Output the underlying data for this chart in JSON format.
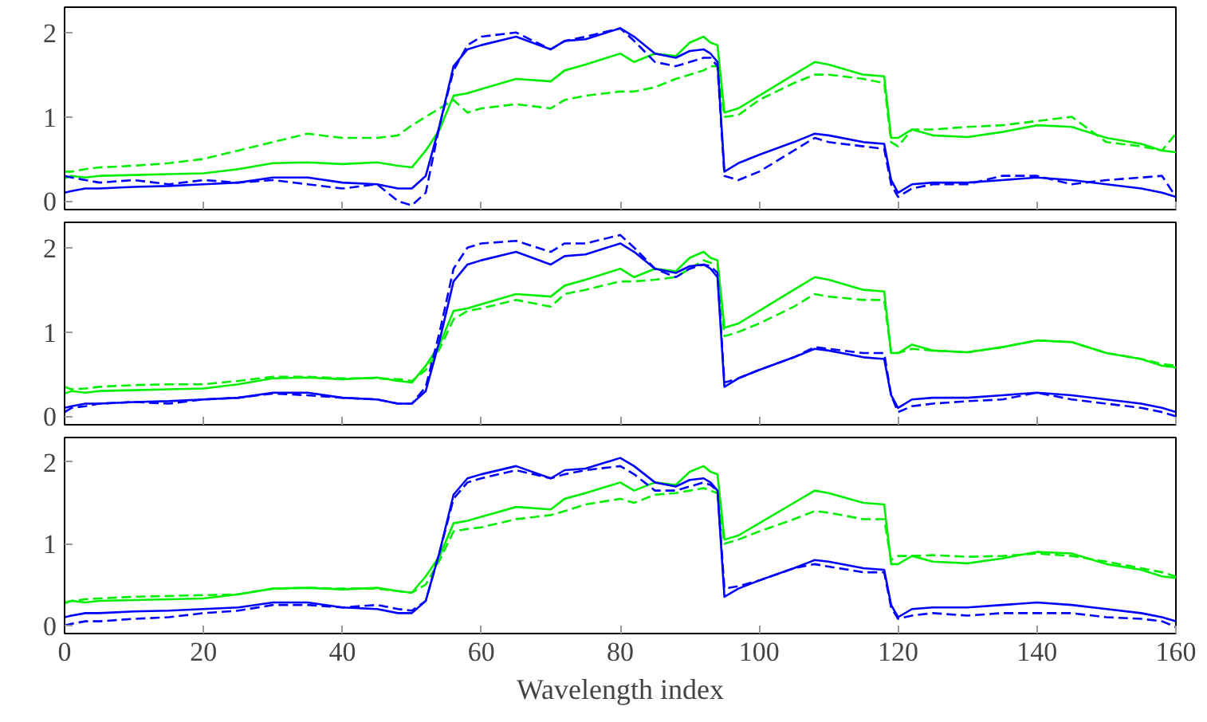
{
  "chart_data": [
    {
      "type": "line",
      "x": [
        0,
        1,
        3,
        5,
        10,
        15,
        20,
        25,
        30,
        35,
        40,
        45,
        48,
        50,
        52,
        54,
        56,
        58,
        60,
        65,
        70,
        72,
        75,
        80,
        82,
        85,
        88,
        90,
        92,
        93,
        94,
        95,
        97,
        100,
        105,
        108,
        110,
        115,
        118,
        119,
        120,
        122,
        125,
        130,
        135,
        140,
        145,
        150,
        155,
        158,
        160
      ],
      "xlim": [
        0,
        160
      ],
      "xticks": [
        0,
        20,
        40,
        60,
        80,
        100,
        120,
        140,
        160
      ],
      "ylim": [
        -0.1,
        2.3
      ],
      "yticks": [
        0,
        1,
        2
      ],
      "tick_labels": "y",
      "grid": false,
      "series": [
        {
          "color": "#00ee00",
          "line_style": "solid",
          "values": [
            0.27,
            0.3,
            0.28,
            0.3,
            0.31,
            0.32,
            0.33,
            0.38,
            0.45,
            0.46,
            0.44,
            0.46,
            0.42,
            0.4,
            0.6,
            0.85,
            1.25,
            1.28,
            1.33,
            1.45,
            1.42,
            1.55,
            1.62,
            1.75,
            1.65,
            1.75,
            1.72,
            1.88,
            1.95,
            1.88,
            1.85,
            1.05,
            1.1,
            1.25,
            1.5,
            1.65,
            1.62,
            1.5,
            1.48,
            0.75,
            0.75,
            0.85,
            0.78,
            0.76,
            0.82,
            0.9,
            0.88,
            0.75,
            0.68,
            0.6,
            0.58
          ]
        },
        {
          "color": "#00ee00",
          "line_style": "dashed",
          "values": [
            0.35,
            0.35,
            0.38,
            0.4,
            0.42,
            0.45,
            0.5,
            0.6,
            0.7,
            0.8,
            0.75,
            0.75,
            0.78,
            0.9,
            1.0,
            1.1,
            1.2,
            1.05,
            1.1,
            1.15,
            1.1,
            1.2,
            1.25,
            1.3,
            1.3,
            1.35,
            1.45,
            1.5,
            1.55,
            1.6,
            1.6,
            1.0,
            1.02,
            1.2,
            1.4,
            1.5,
            1.5,
            1.45,
            1.4,
            0.7,
            0.65,
            0.85,
            0.85,
            0.88,
            0.9,
            0.95,
            1.0,
            0.7,
            0.65,
            0.6,
            0.8
          ]
        },
        {
          "color": "#0000ff",
          "line_style": "solid",
          "values": [
            0.1,
            0.12,
            0.15,
            0.15,
            0.17,
            0.18,
            0.2,
            0.22,
            0.28,
            0.28,
            0.22,
            0.2,
            0.15,
            0.15,
            0.3,
            0.9,
            1.6,
            1.8,
            1.85,
            1.95,
            1.8,
            1.9,
            1.92,
            2.05,
            1.95,
            1.75,
            1.7,
            1.78,
            1.8,
            1.75,
            1.65,
            0.35,
            0.45,
            0.55,
            0.7,
            0.8,
            0.78,
            0.7,
            0.68,
            0.25,
            0.1,
            0.2,
            0.22,
            0.22,
            0.25,
            0.28,
            0.25,
            0.2,
            0.15,
            0.1,
            0.05
          ]
        },
        {
          "color": "#0000ff",
          "line_style": "dashed",
          "values": [
            0.3,
            0.28,
            0.25,
            0.22,
            0.25,
            0.2,
            0.25,
            0.22,
            0.25,
            0.2,
            0.15,
            0.2,
            0.0,
            -0.05,
            0.1,
            0.9,
            1.55,
            1.85,
            1.95,
            2.0,
            1.8,
            1.9,
            1.95,
            2.05,
            1.9,
            1.65,
            1.6,
            1.65,
            1.7,
            1.7,
            1.6,
            0.3,
            0.25,
            0.35,
            0.6,
            0.75,
            0.7,
            0.65,
            0.62,
            0.2,
            0.05,
            0.15,
            0.2,
            0.2,
            0.3,
            0.3,
            0.2,
            0.25,
            0.28,
            0.3,
            0.05
          ]
        }
      ]
    },
    {
      "type": "line",
      "x": [
        0,
        1,
        3,
        5,
        10,
        15,
        20,
        25,
        30,
        35,
        40,
        45,
        48,
        50,
        52,
        54,
        56,
        58,
        60,
        65,
        70,
        72,
        75,
        80,
        82,
        85,
        88,
        90,
        92,
        93,
        94,
        95,
        97,
        100,
        105,
        108,
        110,
        115,
        118,
        119,
        120,
        122,
        125,
        130,
        135,
        140,
        145,
        150,
        155,
        158,
        160
      ],
      "xlim": [
        0,
        160
      ],
      "xticks": [
        0,
        20,
        40,
        60,
        80,
        100,
        120,
        140,
        160
      ],
      "ylim": [
        -0.1,
        2.3
      ],
      "yticks": [
        0,
        1,
        2
      ],
      "tick_labels": "y",
      "grid": false,
      "series": [
        {
          "color": "#00ee00",
          "line_style": "solid",
          "values": [
            0.27,
            0.3,
            0.28,
            0.3,
            0.31,
            0.32,
            0.33,
            0.38,
            0.45,
            0.46,
            0.44,
            0.46,
            0.42,
            0.4,
            0.6,
            0.85,
            1.25,
            1.28,
            1.33,
            1.45,
            1.42,
            1.55,
            1.62,
            1.75,
            1.65,
            1.75,
            1.72,
            1.88,
            1.95,
            1.88,
            1.85,
            1.05,
            1.1,
            1.25,
            1.5,
            1.65,
            1.62,
            1.5,
            1.48,
            0.75,
            0.75,
            0.85,
            0.78,
            0.76,
            0.82,
            0.9,
            0.88,
            0.75,
            0.68,
            0.6,
            0.58
          ]
        },
        {
          "color": "#00ee00",
          "line_style": "dashed",
          "values": [
            0.35,
            0.32,
            0.33,
            0.35,
            0.37,
            0.38,
            0.38,
            0.42,
            0.47,
            0.47,
            0.45,
            0.45,
            0.44,
            0.42,
            0.55,
            0.8,
            1.15,
            1.25,
            1.28,
            1.38,
            1.3,
            1.45,
            1.5,
            1.6,
            1.6,
            1.62,
            1.65,
            1.75,
            1.85,
            1.82,
            1.8,
            0.95,
            1.0,
            1.1,
            1.3,
            1.45,
            1.42,
            1.38,
            1.38,
            0.75,
            0.75,
            0.8,
            0.78,
            0.76,
            0.82,
            0.9,
            0.88,
            0.75,
            0.68,
            0.62,
            0.6
          ]
        },
        {
          "color": "#0000ff",
          "line_style": "solid",
          "values": [
            0.1,
            0.12,
            0.15,
            0.15,
            0.17,
            0.18,
            0.2,
            0.22,
            0.28,
            0.28,
            0.22,
            0.2,
            0.15,
            0.15,
            0.3,
            0.9,
            1.6,
            1.8,
            1.85,
            1.95,
            1.8,
            1.9,
            1.92,
            2.05,
            1.95,
            1.75,
            1.7,
            1.78,
            1.8,
            1.75,
            1.65,
            0.35,
            0.45,
            0.55,
            0.7,
            0.8,
            0.78,
            0.7,
            0.68,
            0.25,
            0.1,
            0.2,
            0.22,
            0.22,
            0.25,
            0.28,
            0.25,
            0.2,
            0.15,
            0.1,
            0.05
          ]
        },
        {
          "color": "#0000ff",
          "line_style": "dashed",
          "values": [
            0.05,
            0.1,
            0.12,
            0.15,
            0.17,
            0.15,
            0.2,
            0.22,
            0.27,
            0.25,
            0.22,
            0.2,
            0.15,
            0.15,
            0.35,
            1.0,
            1.75,
            2.0,
            2.05,
            2.08,
            1.95,
            2.05,
            2.05,
            2.15,
            2.0,
            1.75,
            1.65,
            1.75,
            1.8,
            1.78,
            1.7,
            0.4,
            0.45,
            0.55,
            0.7,
            0.82,
            0.8,
            0.75,
            0.75,
            0.25,
            0.05,
            0.12,
            0.15,
            0.18,
            0.2,
            0.28,
            0.2,
            0.15,
            0.1,
            0.05,
            0.0
          ]
        }
      ]
    },
    {
      "type": "line",
      "xlabel": "Wavelength index",
      "x": [
        0,
        1,
        3,
        5,
        10,
        15,
        20,
        25,
        30,
        35,
        40,
        45,
        48,
        50,
        52,
        54,
        56,
        58,
        60,
        65,
        70,
        72,
        75,
        80,
        82,
        85,
        88,
        90,
        92,
        93,
        94,
        95,
        97,
        100,
        105,
        108,
        110,
        115,
        118,
        119,
        120,
        122,
        125,
        130,
        135,
        140,
        145,
        150,
        155,
        158,
        160
      ],
      "xlim": [
        0,
        160
      ],
      "xticks": [
        0,
        20,
        40,
        60,
        80,
        100,
        120,
        140,
        160
      ],
      "ylim": [
        -0.1,
        2.3
      ],
      "yticks": [
        0,
        1,
        2
      ],
      "grid": false,
      "series": [
        {
          "color": "#00ee00",
          "line_style": "solid",
          "values": [
            0.27,
            0.3,
            0.28,
            0.3,
            0.31,
            0.32,
            0.33,
            0.38,
            0.45,
            0.46,
            0.44,
            0.46,
            0.42,
            0.4,
            0.6,
            0.85,
            1.25,
            1.28,
            1.33,
            1.45,
            1.42,
            1.55,
            1.62,
            1.75,
            1.65,
            1.75,
            1.72,
            1.88,
            1.95,
            1.88,
            1.85,
            1.05,
            1.1,
            1.25,
            1.5,
            1.65,
            1.62,
            1.5,
            1.48,
            0.75,
            0.75,
            0.85,
            0.78,
            0.76,
            0.82,
            0.9,
            0.88,
            0.75,
            0.68,
            0.6,
            0.58
          ]
        },
        {
          "color": "#00ee00",
          "line_style": "dashed",
          "values": [
            0.28,
            0.3,
            0.32,
            0.33,
            0.35,
            0.36,
            0.37,
            0.38,
            0.45,
            0.46,
            0.45,
            0.45,
            0.42,
            0.4,
            0.5,
            0.8,
            1.15,
            1.18,
            1.2,
            1.3,
            1.35,
            1.4,
            1.48,
            1.55,
            1.5,
            1.6,
            1.62,
            1.65,
            1.68,
            1.65,
            1.62,
            1.0,
            1.05,
            1.15,
            1.3,
            1.4,
            1.38,
            1.3,
            1.3,
            0.8,
            0.85,
            0.85,
            0.86,
            0.84,
            0.85,
            0.88,
            0.85,
            0.78,
            0.7,
            0.65,
            0.6
          ]
        },
        {
          "color": "#0000ff",
          "line_style": "solid",
          "values": [
            0.1,
            0.12,
            0.15,
            0.15,
            0.17,
            0.18,
            0.2,
            0.22,
            0.28,
            0.28,
            0.22,
            0.2,
            0.15,
            0.15,
            0.3,
            0.9,
            1.6,
            1.8,
            1.85,
            1.95,
            1.8,
            1.9,
            1.92,
            2.05,
            1.95,
            1.75,
            1.7,
            1.78,
            1.8,
            1.75,
            1.65,
            0.35,
            0.45,
            0.55,
            0.7,
            0.8,
            0.78,
            0.7,
            0.68,
            0.25,
            0.1,
            0.2,
            0.22,
            0.22,
            0.25,
            0.28,
            0.25,
            0.2,
            0.15,
            0.1,
            0.05
          ]
        },
        {
          "color": "#0000ff",
          "line_style": "dashed",
          "values": [
            0.0,
            0.02,
            0.05,
            0.05,
            0.08,
            0.1,
            0.15,
            0.18,
            0.25,
            0.25,
            0.22,
            0.25,
            0.2,
            0.18,
            0.3,
            0.9,
            1.55,
            1.75,
            1.8,
            1.9,
            1.8,
            1.85,
            1.9,
            1.95,
            1.85,
            1.65,
            1.65,
            1.7,
            1.75,
            1.72,
            1.65,
            0.45,
            0.48,
            0.55,
            0.7,
            0.75,
            0.72,
            0.65,
            0.65,
            0.22,
            0.08,
            0.12,
            0.15,
            0.12,
            0.15,
            0.15,
            0.15,
            0.1,
            0.08,
            0.05,
            -0.02
          ]
        }
      ]
    }
  ]
}
